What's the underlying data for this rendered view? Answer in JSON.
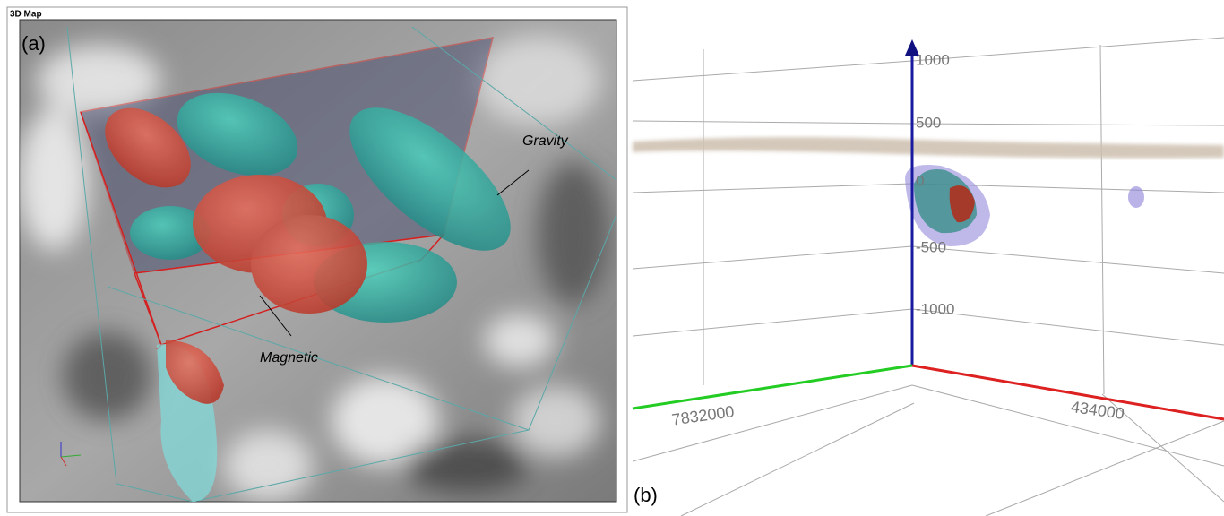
{
  "panel_a": {
    "window_title": "3D Map",
    "label": "(a)",
    "annotations": [
      "Gravity",
      "Magnetic"
    ]
  },
  "panel_b": {
    "label": "(b)",
    "depth_labels": [
      "1000",
      "500",
      "0",
      "-500",
      "-1000"
    ],
    "axis_labels": [
      "7832000",
      "434000"
    ]
  }
}
